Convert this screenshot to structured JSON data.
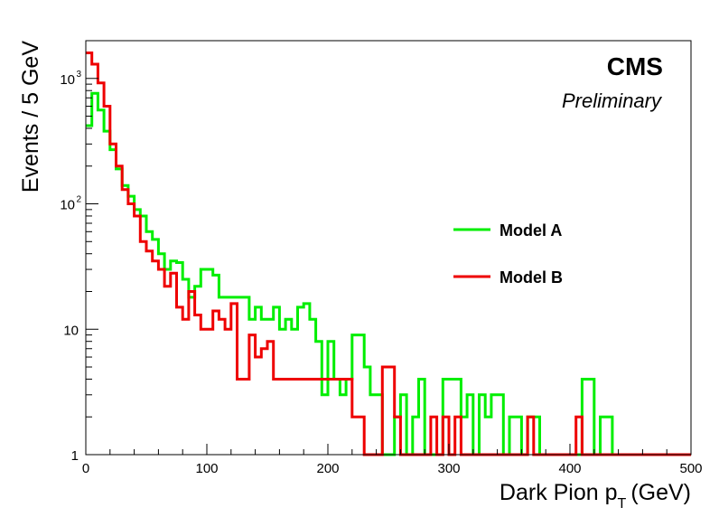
{
  "chart_data": {
    "type": "line",
    "style": "step-histogram",
    "xlabel": "Dark Pion p",
    "xlabel_sub": "T",
    "xlabel_unit": "(GeV)",
    "ylabel": "Events / 5 GeV",
    "xlim": [
      0,
      500
    ],
    "ylim": [
      1,
      2000
    ],
    "yscale": "log",
    "bin_width": 5,
    "grid": false,
    "legend_position": "right",
    "x_ticks": [
      {
        "value": 0,
        "label": "0"
      },
      {
        "value": 100,
        "label": "100"
      },
      {
        "value": 200,
        "label": "200"
      },
      {
        "value": 300,
        "label": "300"
      },
      {
        "value": 400,
        "label": "400"
      },
      {
        "value": 500,
        "label": "500"
      }
    ],
    "y_ticks": [
      {
        "value": 1,
        "label": "1"
      },
      {
        "value": 10,
        "label": "10"
      },
      {
        "value": 100,
        "label": "10",
        "exp": "2"
      },
      {
        "value": 1000,
        "label": "10",
        "exp": "3"
      }
    ],
    "series": [
      {
        "name": "Model A",
        "color": "#00ee00",
        "values": [
          420,
          760,
          560,
          380,
          270,
          190,
          140,
          115,
          90,
          80,
          60,
          52,
          40,
          30,
          35,
          34,
          25,
          18,
          22,
          30,
          30,
          27,
          18,
          18,
          18,
          18,
          18,
          12,
          15,
          12,
          12,
          15,
          10,
          12,
          10,
          15,
          16,
          12,
          8,
          3,
          8,
          4,
          3,
          4,
          9,
          9,
          5,
          3,
          3,
          1,
          1,
          2,
          3,
          1,
          2,
          4,
          1,
          1,
          1,
          4,
          4,
          4,
          2,
          3,
          1,
          3,
          2,
          3,
          3,
          1,
          2,
          2,
          1,
          2,
          2,
          1,
          1,
          1,
          1,
          1,
          1,
          1,
          4,
          4,
          1,
          2,
          2,
          1,
          1,
          1,
          1,
          1,
          1,
          1,
          1,
          1,
          1,
          1,
          1,
          1
        ]
      },
      {
        "name": "Model B",
        "color": "#ee0000",
        "values": [
          1600,
          1300,
          920,
          600,
          300,
          200,
          130,
          100,
          80,
          50,
          42,
          35,
          30,
          22,
          28,
          15,
          12,
          20,
          13,
          10,
          10,
          14,
          12,
          10,
          16,
          4,
          4,
          9,
          6,
          7,
          8,
          4,
          4,
          4,
          4,
          4,
          4,
          4,
          4,
          4,
          4,
          4,
          4,
          4,
          2,
          2,
          1,
          1,
          1,
          5,
          5,
          2,
          1,
          1,
          1,
          1,
          1,
          2,
          1,
          2,
          1,
          2,
          1,
          1,
          1,
          1,
          1,
          1,
          1,
          1,
          1,
          1,
          1,
          2,
          1,
          1,
          1,
          1,
          1,
          1,
          1,
          2,
          1,
          1,
          1,
          1,
          1,
          1,
          1,
          1,
          1,
          1,
          1,
          1,
          1,
          1,
          1,
          1,
          1,
          1
        ]
      }
    ]
  },
  "labels": {
    "experiment": "CMS",
    "status": "Preliminary"
  }
}
